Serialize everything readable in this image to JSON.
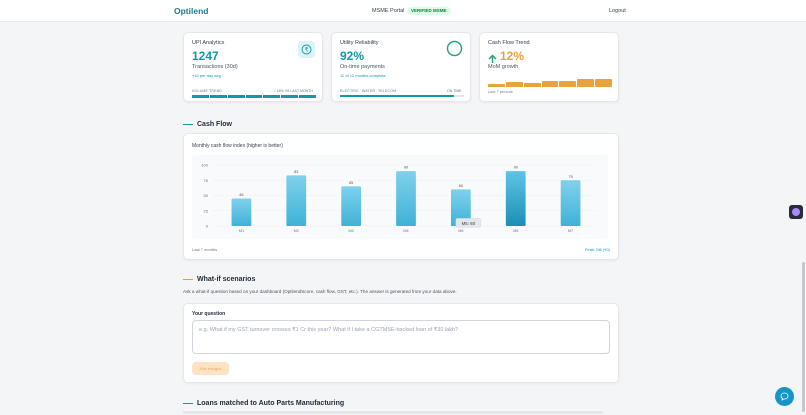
{
  "header": {
    "brand": "Optilend",
    "portal": "MSME Portal",
    "verified_badge": "VERIFIED MSME",
    "logout": "Logout"
  },
  "cards": {
    "upi": {
      "title": "UPI Analytics",
      "value": "1247",
      "subtitle": "Transactions (30d)",
      "note": "+42 per day avg",
      "trend_label": "VOLUME TREND",
      "trend_right": "↑ 18% VS LAST MONTH",
      "icon": "rupee-icon"
    },
    "utility": {
      "title": "Utility Reliability",
      "value": "92%",
      "subtitle": "On-time payments",
      "note": "11 of 12 months complete",
      "legend_electric": "ELECTRIC",
      "legend_water": "WATER",
      "legend_telecom": "TELECOM",
      "legend_ontime": "ON TIME",
      "progress": 0.92,
      "icon": "ring-icon"
    },
    "cashflow_trend": {
      "title": "Cash Flow Trend",
      "value": "12%",
      "subtitle": "MoM growth",
      "note": "Last 7 periods",
      "icon": "arrow-up-icon",
      "bar_levels": [
        0.35,
        0.5,
        0.42,
        0.62,
        0.58,
        0.82,
        0.8
      ]
    }
  },
  "cash_flow": {
    "section_title": "Cash Flow",
    "chart_caption": "Monthly cash flow index (higher is better)",
    "footer_left": "Last 7 months",
    "footer_right": "Peak: M6 (90)",
    "tooltip": "M5: 60"
  },
  "chart_data": {
    "type": "bar",
    "categories": [
      "M1",
      "M2",
      "M3",
      "M4",
      "M5",
      "M6",
      "M7"
    ],
    "values": [
      45,
      83,
      65,
      90,
      60,
      90,
      75
    ],
    "value_labels": [
      "45",
      "83",
      "65",
      "90",
      "60",
      "90",
      "75"
    ],
    "y_ticks": [
      "100",
      "75",
      "50",
      "25",
      "0"
    ],
    "ylim": [
      0,
      100
    ],
    "highlight": "M6",
    "grid": true
  },
  "whatif": {
    "section_title": "What-if scenarios",
    "description": "Ask a what-if question based on your dashboard (OptilendScore, cash flow, GST, etc.). The answer is generated from your data above.",
    "question_label": "Your question",
    "placeholder": "e.g. What if my GST turnover crosses ₹1 Cr this year? What if I take a CGTMSE-backed loan of ₹30 lakh?",
    "button": "Get insight"
  },
  "loans": {
    "section_title": "Loans matched to Auto Parts Manufacturing"
  },
  "colors": {
    "accent": "#0e9aa7",
    "orange": "#e8a33a",
    "bar_light": "#7fd1ec",
    "bar_dark": "#1c8fb4",
    "fab": "#1596c8"
  }
}
